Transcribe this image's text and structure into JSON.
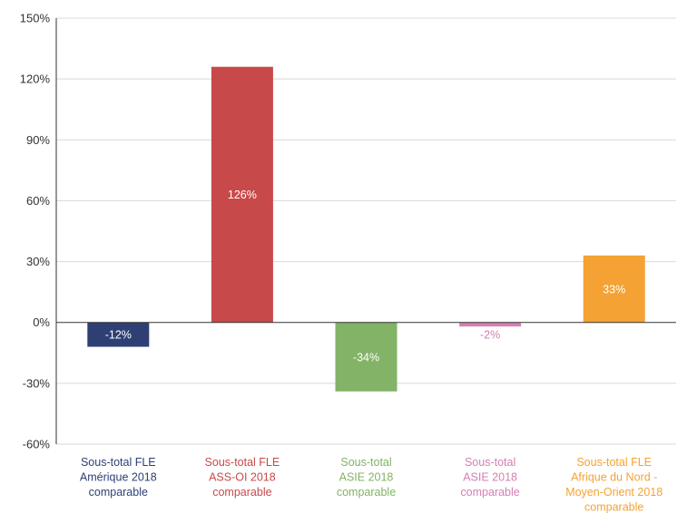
{
  "chart_data": {
    "type": "bar",
    "categories": [
      [
        "Sous-total FLE",
        "Amérique 2018",
        "comparable"
      ],
      [
        "Sous-total FLE",
        "ASS-OI 2018",
        "comparable"
      ],
      [
        "Sous-total",
        "ASIE 2018",
        "comparable"
      ],
      [
        "Sous-total",
        "ASIE 2018",
        "comparable"
      ],
      [
        "Sous-total FLE",
        "Afrique du Nord -",
        "Moyen-Orient 2018",
        "comparable"
      ]
    ],
    "values": [
      -12,
      126,
      -34,
      -2,
      33
    ],
    "data_labels": [
      "-12%",
      "126%",
      "-34%",
      "-2%",
      "33%"
    ],
    "colors": [
      "#2e3f74",
      "#c8494a",
      "#82b366",
      "#d47fb4",
      "#f4a233"
    ],
    "label_colors": [
      "#ffffff",
      "#ffffff",
      "#ffffff",
      "#d47fb4",
      "#ffffff"
    ],
    "yticks": [
      150,
      120,
      90,
      60,
      30,
      0,
      -30,
      -60
    ],
    "ytick_labels": [
      "150%",
      "120%",
      "90%",
      "60%",
      "30%",
      "0%",
      "-30%",
      "-60%"
    ],
    "ylim": [
      -60,
      150
    ],
    "grid": true,
    "title": "",
    "xlabel": "",
    "ylabel": ""
  }
}
